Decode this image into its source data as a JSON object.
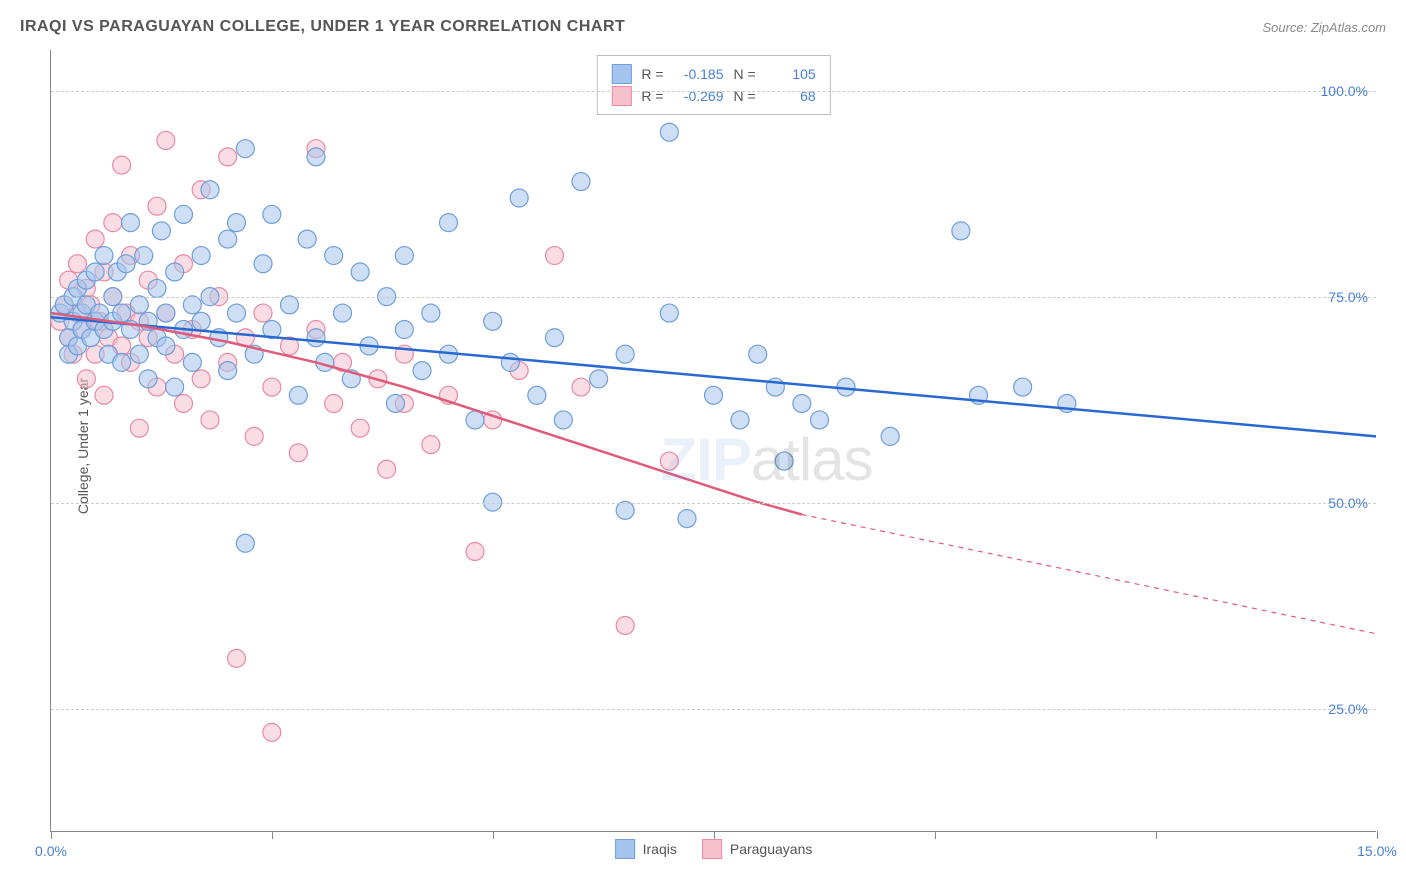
{
  "title": "IRAQI VS PARAGUAYAN COLLEGE, UNDER 1 YEAR CORRELATION CHART",
  "source": "Source: ZipAtlas.com",
  "ylabel": "College, Under 1 year",
  "watermark_zip": "ZIP",
  "watermark_atlas": "atlas",
  "axes": {
    "xlim": [
      0,
      15
    ],
    "ylim": [
      10,
      105
    ],
    "ytick_values": [
      25,
      50,
      75,
      100
    ],
    "ytick_labels": [
      "25.0%",
      "50.0%",
      "75.0%",
      "100.0%"
    ],
    "xtick_values": [
      0,
      2.5,
      5,
      7.5,
      10,
      12.5,
      15
    ],
    "xtick_labels_visible": {
      "0": "0.0%",
      "15": "15.0%"
    },
    "grid_color": "#d0d0d0",
    "axis_color": "#888888",
    "tick_label_color": "#4a7fd8"
  },
  "series": {
    "iraqis": {
      "label": "Iraqis",
      "color_fill": "#a5c4ed",
      "color_stroke": "#6f9edb",
      "line_color": "#2968d0",
      "R": "-0.185",
      "N": "105",
      "trend": {
        "x1": 0,
        "y1": 72.5,
        "x2": 15,
        "y2": 58,
        "solid_until_x": 15
      },
      "points": [
        [
          0.1,
          73
        ],
        [
          0.15,
          74
        ],
        [
          0.2,
          70
        ],
        [
          0.2,
          68
        ],
        [
          0.25,
          72
        ],
        [
          0.25,
          75
        ],
        [
          0.3,
          76
        ],
        [
          0.3,
          69
        ],
        [
          0.35,
          73
        ],
        [
          0.35,
          71
        ],
        [
          0.4,
          74
        ],
        [
          0.4,
          77
        ],
        [
          0.45,
          70
        ],
        [
          0.5,
          72
        ],
        [
          0.5,
          78
        ],
        [
          0.55,
          73
        ],
        [
          0.6,
          71
        ],
        [
          0.6,
          80
        ],
        [
          0.65,
          68
        ],
        [
          0.7,
          75
        ],
        [
          0.7,
          72
        ],
        [
          0.75,
          78
        ],
        [
          0.8,
          73
        ],
        [
          0.8,
          67
        ],
        [
          0.85,
          79
        ],
        [
          0.9,
          71
        ],
        [
          0.9,
          84
        ],
        [
          1.0,
          74
        ],
        [
          1.0,
          68
        ],
        [
          1.05,
          80
        ],
        [
          1.1,
          72
        ],
        [
          1.1,
          65
        ],
        [
          1.2,
          76
        ],
        [
          1.2,
          70
        ],
        [
          1.25,
          83
        ],
        [
          1.3,
          69
        ],
        [
          1.3,
          73
        ],
        [
          1.4,
          78
        ],
        [
          1.4,
          64
        ],
        [
          1.5,
          71
        ],
        [
          1.5,
          85
        ],
        [
          1.6,
          74
        ],
        [
          1.6,
          67
        ],
        [
          1.7,
          80
        ],
        [
          1.7,
          72
        ],
        [
          1.8,
          75
        ],
        [
          1.8,
          88
        ],
        [
          1.9,
          70
        ],
        [
          2.0,
          82
        ],
        [
          2.0,
          66
        ],
        [
          2.1,
          84
        ],
        [
          2.1,
          73
        ],
        [
          2.2,
          45
        ],
        [
          2.2,
          93
        ],
        [
          2.3,
          68
        ],
        [
          2.4,
          79
        ],
        [
          2.5,
          71
        ],
        [
          2.5,
          85
        ],
        [
          2.7,
          74
        ],
        [
          2.8,
          63
        ],
        [
          2.9,
          82
        ],
        [
          3.0,
          70
        ],
        [
          3.0,
          92
        ],
        [
          3.1,
          67
        ],
        [
          3.2,
          80
        ],
        [
          3.3,
          73
        ],
        [
          3.4,
          65
        ],
        [
          3.5,
          78
        ],
        [
          3.6,
          69
        ],
        [
          3.8,
          75
        ],
        [
          3.9,
          62
        ],
        [
          4.0,
          71
        ],
        [
          4.0,
          80
        ],
        [
          4.2,
          66
        ],
        [
          4.3,
          73
        ],
        [
          4.5,
          68
        ],
        [
          4.5,
          84
        ],
        [
          4.8,
          60
        ],
        [
          5.0,
          72
        ],
        [
          5.0,
          50
        ],
        [
          5.2,
          67
        ],
        [
          5.3,
          87
        ],
        [
          5.5,
          63
        ],
        [
          5.7,
          70
        ],
        [
          5.8,
          60
        ],
        [
          6.0,
          89
        ],
        [
          6.2,
          65
        ],
        [
          6.5,
          68
        ],
        [
          6.5,
          49
        ],
        [
          7.0,
          73
        ],
        [
          7.0,
          95
        ],
        [
          7.2,
          48
        ],
        [
          7.5,
          63
        ],
        [
          7.8,
          60
        ],
        [
          8.0,
          68
        ],
        [
          8.2,
          64
        ],
        [
          8.3,
          55
        ],
        [
          8.5,
          62
        ],
        [
          8.7,
          60
        ],
        [
          9.0,
          64
        ],
        [
          9.5,
          58
        ],
        [
          10.3,
          83
        ],
        [
          10.5,
          63
        ],
        [
          11.0,
          64
        ],
        [
          11.5,
          62
        ]
      ]
    },
    "paraguayans": {
      "label": "Paraguayans",
      "color_fill": "#f5c1cd",
      "color_stroke": "#e88aa3",
      "line_color": "#e05a7a",
      "R": "-0.269",
      "N": "68",
      "trend_curve": [
        [
          0,
          73
        ],
        [
          1,
          71.5
        ],
        [
          2,
          69.5
        ],
        [
          3,
          67
        ],
        [
          4,
          64
        ],
        [
          5,
          60.5
        ],
        [
          6,
          57
        ],
        [
          7,
          53.5
        ],
        [
          8,
          50
        ],
        [
          8.5,
          48.5
        ]
      ],
      "trend_dashed": [
        [
          8.5,
          48.5
        ],
        [
          15,
          34
        ]
      ],
      "points": [
        [
          0.1,
          72
        ],
        [
          0.15,
          74
        ],
        [
          0.2,
          70
        ],
        [
          0.2,
          77
        ],
        [
          0.25,
          68
        ],
        [
          0.3,
          73
        ],
        [
          0.3,
          79
        ],
        [
          0.35,
          71
        ],
        [
          0.4,
          65
        ],
        [
          0.4,
          76
        ],
        [
          0.45,
          74
        ],
        [
          0.5,
          68
        ],
        [
          0.5,
          82
        ],
        [
          0.55,
          72
        ],
        [
          0.6,
          78
        ],
        [
          0.6,
          63
        ],
        [
          0.65,
          70
        ],
        [
          0.7,
          75
        ],
        [
          0.7,
          84
        ],
        [
          0.8,
          69
        ],
        [
          0.8,
          91
        ],
        [
          0.85,
          73
        ],
        [
          0.9,
          67
        ],
        [
          0.9,
          80
        ],
        [
          1.0,
          72
        ],
        [
          1.0,
          59
        ],
        [
          1.1,
          77
        ],
        [
          1.1,
          70
        ],
        [
          1.2,
          64
        ],
        [
          1.2,
          86
        ],
        [
          1.3,
          73
        ],
        [
          1.3,
          94
        ],
        [
          1.4,
          68
        ],
        [
          1.5,
          62
        ],
        [
          1.5,
          79
        ],
        [
          1.6,
          71
        ],
        [
          1.7,
          65
        ],
        [
          1.7,
          88
        ],
        [
          1.8,
          60
        ],
        [
          1.9,
          75
        ],
        [
          2.0,
          67
        ],
        [
          2.0,
          92
        ],
        [
          2.1,
          31
        ],
        [
          2.2,
          70
        ],
        [
          2.3,
          58
        ],
        [
          2.4,
          73
        ],
        [
          2.5,
          64
        ],
        [
          2.5,
          22
        ],
        [
          2.7,
          69
        ],
        [
          2.8,
          56
        ],
        [
          3.0,
          71
        ],
        [
          3.0,
          93
        ],
        [
          3.2,
          62
        ],
        [
          3.3,
          67
        ],
        [
          3.5,
          59
        ],
        [
          3.7,
          65
        ],
        [
          3.8,
          54
        ],
        [
          4.0,
          68
        ],
        [
          4.0,
          62
        ],
        [
          4.3,
          57
        ],
        [
          4.5,
          63
        ],
        [
          4.8,
          44
        ],
        [
          5.0,
          60
        ],
        [
          5.3,
          66
        ],
        [
          5.7,
          80
        ],
        [
          6.0,
          64
        ],
        [
          6.5,
          35
        ],
        [
          7.0,
          55
        ]
      ]
    }
  },
  "legend_top": {
    "R_label": "R =",
    "N_label": "N ="
  },
  "chart_style": {
    "marker_radius": 9,
    "marker_opacity": 0.55,
    "line_width": 2.5,
    "background": "#ffffff"
  }
}
